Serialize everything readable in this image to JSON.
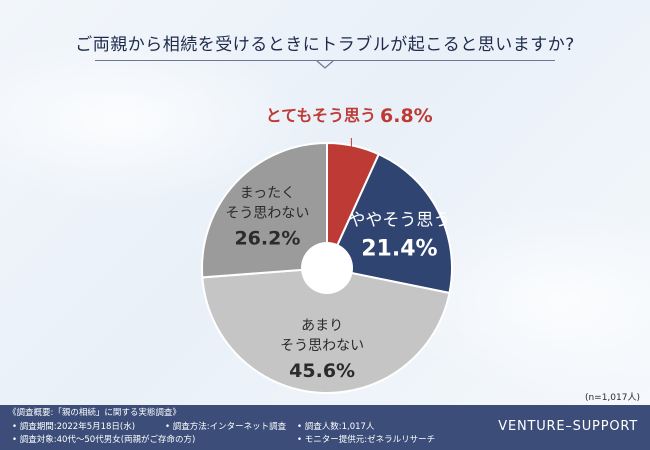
{
  "title": "ご両親から相続を受けるときにトラブルが起こると思いますか?",
  "sample_note": "(n=1,017人)",
  "colors": {
    "very_likely": "#be3a35",
    "somewhat_likely": "#2f4471",
    "somewhat_unlikely": "#c5c5c5",
    "not_at_all": "#9b9b9b",
    "footer_bg": "#3b4d78"
  },
  "chart_data": {
    "type": "pie",
    "title": "ご両親から相続を受けるときにトラブルが起こると思いますか?",
    "unit": "%",
    "slices": [
      {
        "label": "とてもそう思う",
        "value": 6.8,
        "display": "6.8%",
        "color": "#be3a35"
      },
      {
        "label": "ややそう思う",
        "value": 21.4,
        "display": "21.4%",
        "color": "#2f4471"
      },
      {
        "label": "あまりそう思わない",
        "value": 45.6,
        "display": "45.6%",
        "color": "#c5c5c5"
      },
      {
        "label": "まったくそう思わない",
        "value": 26.2,
        "display": "26.2%",
        "color": "#9b9b9b"
      }
    ]
  },
  "footer": {
    "survey_title": "《調査概要:「親の相続」に関する実態調査》",
    "period": "• 調査期間:2022年5月18日(水)",
    "method": "• 調査方法:インターネット調査",
    "count": "• 調査人数:1,017人",
    "target": "• 調査対象:40代〜50代男女(両親がご存命の方)",
    "provider": "• モニター提供元:ゼネラルリサーチ",
    "brand": "VENTURE–SUPPORT"
  }
}
